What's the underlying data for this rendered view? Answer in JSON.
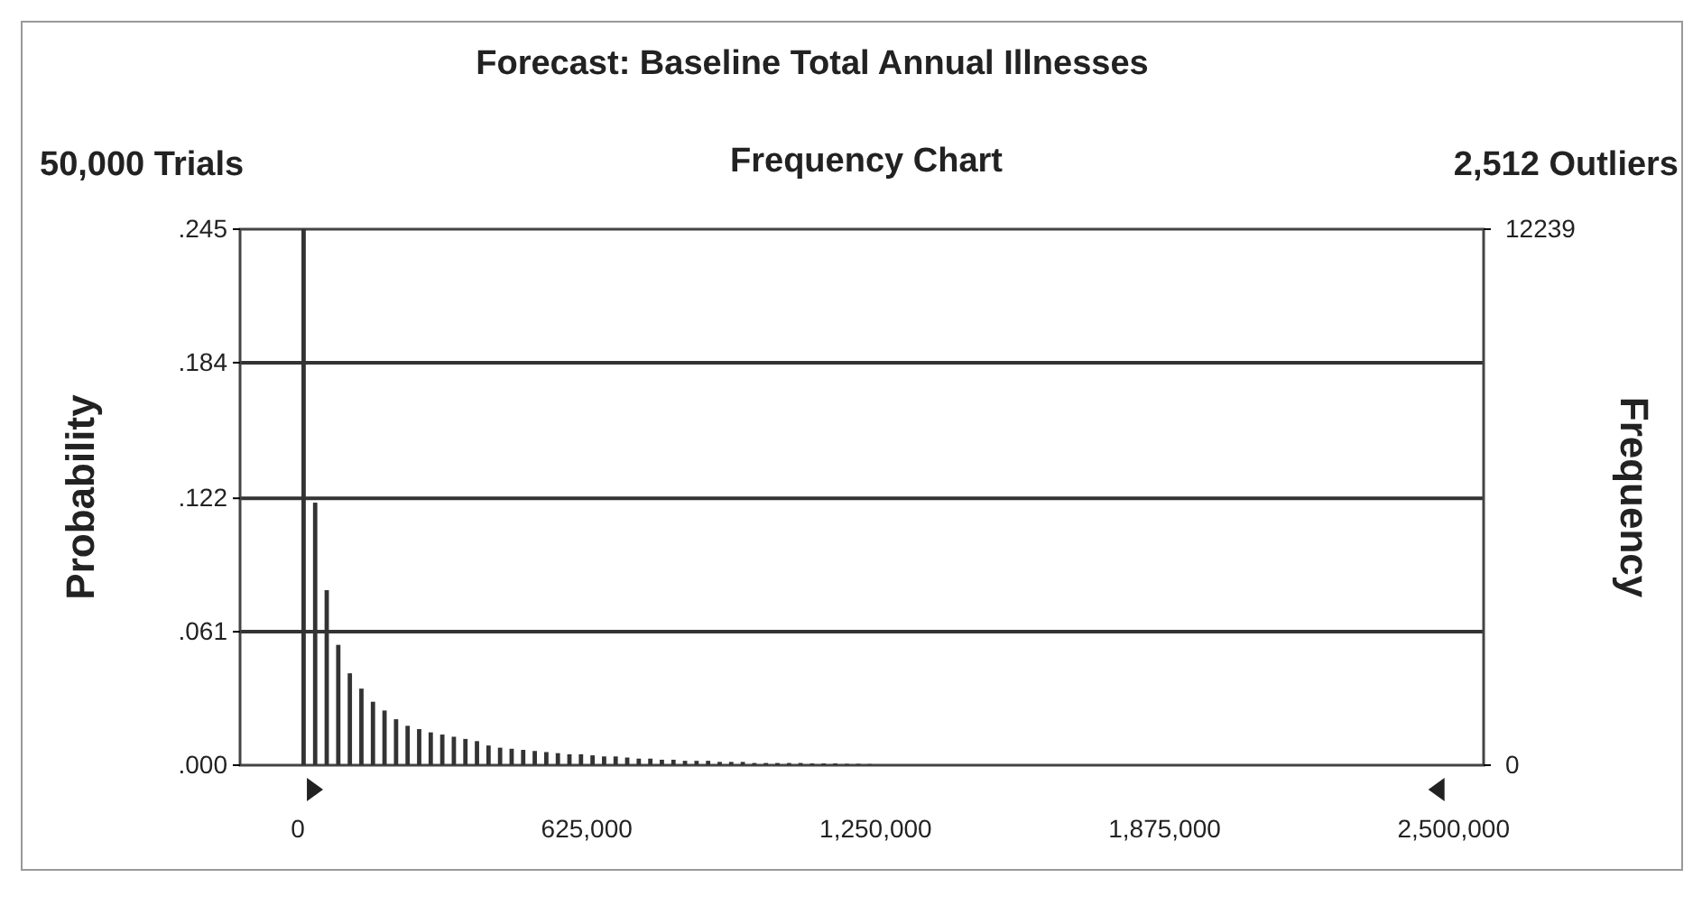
{
  "chart_data": {
    "type": "histogram",
    "title": "Forecast: Baseline Total Annual Illnesses",
    "subtitle": "Frequency Chart",
    "annotations": [
      "50,000 Trials",
      "2,512 Outliers"
    ],
    "ylabel": "Probability",
    "y2label": "Frequency",
    "bins": [
      0,
      25000,
      50000,
      75000,
      100000,
      125000,
      150000,
      175000,
      200000,
      225000,
      250000,
      275000,
      300000,
      325000,
      350000,
      375000,
      400000,
      425000,
      450000,
      475000,
      500000,
      525000,
      550000,
      575000,
      600000,
      625000,
      650000,
      675000,
      700000,
      725000,
      750000,
      775000,
      800000,
      825000,
      850000,
      875000,
      900000,
      925000,
      950000,
      975000,
      1000000,
      1025000,
      1050000,
      1075000,
      1100000,
      1125000,
      1150000,
      1175000,
      1200000,
      1225000,
      1250000,
      1275000,
      1300000,
      1325000,
      1350000,
      1375000,
      1400000,
      1425000,
      1450000,
      1475000,
      1500000,
      1525000,
      1550000,
      1575000,
      1600000,
      1625000,
      1650000,
      1675000,
      1700000,
      1725000,
      1750000,
      1775000,
      1800000,
      1825000,
      1850000,
      1875000,
      1900000,
      1925000,
      1950000,
      1975000,
      2000000,
      2025000,
      2050000,
      2075000,
      2100000,
      2125000,
      2150000,
      2175000,
      2200000,
      2225000,
      2250000,
      2275000,
      2300000,
      2325000,
      2350000,
      2375000,
      2400000,
      2425000,
      2450000,
      2475000,
      2500000
    ],
    "values": [
      0.245,
      0.12,
      0.08,
      0.055,
      0.042,
      0.035,
      0.029,
      0.025,
      0.021,
      0.018,
      0.0165,
      0.015,
      0.014,
      0.013,
      0.012,
      0.011,
      0.009,
      0.008,
      0.0075,
      0.007,
      0.0065,
      0.006,
      0.0055,
      0.005,
      0.005,
      0.0045,
      0.004,
      0.004,
      0.0035,
      0.003,
      0.003,
      0.0025,
      0.0025,
      0.002,
      0.002,
      0.002,
      0.0015,
      0.0015,
      0.0015,
      0.001,
      0.001,
      0.001,
      0.001,
      0.001,
      0.0008,
      0.0008,
      0.0008,
      0.0006,
      0.0006,
      0.0005,
      0,
      0,
      0,
      0,
      0,
      0,
      0,
      0,
      0,
      0,
      0,
      0,
      0,
      0,
      0,
      0,
      0,
      0,
      0,
      0,
      0,
      0,
      0,
      0,
      0,
      0,
      0,
      0,
      0,
      0,
      0,
      0,
      0,
      0,
      0,
      0,
      0,
      0,
      0,
      0,
      0,
      0,
      0,
      0,
      0,
      0,
      0,
      0,
      0,
      0
    ],
    "color": "#333333",
    "xlim": [
      -125000,
      2565000
    ],
    "xticks": [
      0,
      {
        "value": 625000,
        "label": "625,000"
      },
      {
        "value": 1250000,
        "label": "1,250,000"
      },
      {
        "value": 1875000,
        "label": "1,875,000"
      },
      {
        "value": 2500000,
        "label": "2,500,000"
      }
    ],
    "ylim": [
      0,
      0.245
    ],
    "yticks": [
      {
        "value": 0,
        "label": ".000"
      },
      {
        "value": 0.061,
        "label": ".061"
      },
      {
        "value": 0.122,
        "label": ".122"
      },
      {
        "value": 0.184,
        "label": ".184"
      },
      {
        "value": 0.245,
        "label": ".245"
      }
    ],
    "y2lim": [
      0,
      12239
    ],
    "y2ticks": [
      0,
      12239
    ],
    "grid": "y"
  }
}
